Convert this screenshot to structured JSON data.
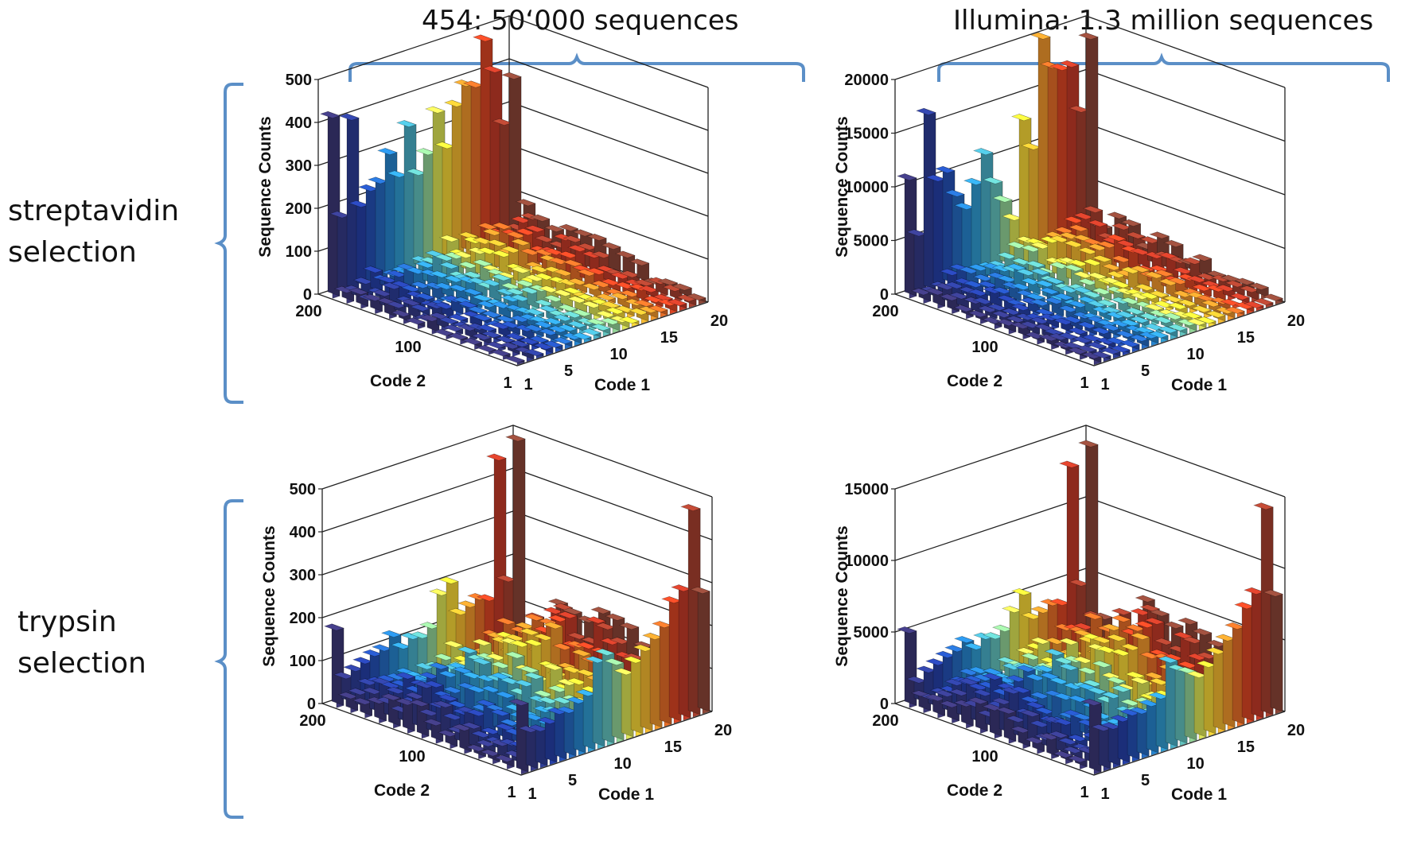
{
  "headers": {
    "left": "454: 50‘000 sequences",
    "right": "Illumina: 1.3 million sequences"
  },
  "rows": {
    "top": [
      "streptavidin",
      "selection"
    ],
    "bottom": [
      "trypsin",
      "selection"
    ]
  },
  "chart_data": [
    {
      "id": "streptavidin-454",
      "type": "bar3d",
      "ylabel": "Sequence Counts",
      "xlabel": "Code 1",
      "zlabel": "Code 2",
      "ylim": [
        0,
        500
      ],
      "yticks": [
        0,
        100,
        200,
        300,
        400,
        500
      ],
      "xticks": [
        1,
        5,
        10,
        15,
        20
      ],
      "zticks": [
        "200",
        "100",
        "1"
      ],
      "back_row_values": [
        420,
        180,
        400,
        190,
        220,
        230,
        290,
        230,
        340,
        220,
        260,
        350,
        260,
        350,
        390,
        380,
        480,
        400,
        270,
        370
      ],
      "floor_level": 25
    },
    {
      "id": "streptavidin-illumina",
      "type": "bar3d",
      "ylabel": "Sequence Counts",
      "xlabel": "Code 1",
      "zlabel": "Code 2",
      "ylim": [
        0,
        20000
      ],
      "yticks": [
        0,
        5000,
        10000,
        15000,
        20000
      ],
      "xticks": [
        1,
        5,
        10,
        15,
        20
      ],
      "zticks": [
        "200",
        "100",
        "1"
      ],
      "back_row_values": [
        11000,
        5500,
        16500,
        10000,
        10500,
        8000,
        6500,
        8500,
        11000,
        8000,
        6000,
        4000,
        13000,
        10000,
        20000,
        17000,
        16500,
        16500,
        12000,
        18500
      ],
      "floor_level": 900
    },
    {
      "id": "trypsin-454",
      "type": "bar3d",
      "ylabel": "Sequence Counts",
      "xlabel": "Code 1",
      "zlabel": "Code 2",
      "ylim": [
        0,
        500
      ],
      "yticks": [
        0,
        100,
        200,
        300,
        400,
        500
      ],
      "xticks": [
        1,
        5,
        10,
        15,
        20
      ],
      "zticks": [
        "200",
        "100",
        "1"
      ],
      "back_row_values": [
        180,
        60,
        70,
        80,
        90,
        95,
        120,
        85,
        100,
        95,
        110,
        180,
        200,
        120,
        130,
        140,
        130,
        450,
        160,
        480
      ],
      "front_row_values": [
        160,
        90,
        85,
        95,
        110,
        105,
        120,
        130,
        200,
        210,
        180,
        150,
        170,
        190,
        210,
        230,
        280,
        300,
        480,
        280
      ],
      "floor_level": 30
    },
    {
      "id": "trypsin-illumina",
      "type": "bar3d",
      "ylabel": "Sequence Counts",
      "xlabel": "Code 1",
      "zlabel": "Code 2",
      "ylim": [
        0,
        15000
      ],
      "yticks": [
        0,
        5000,
        10000,
        15000
      ],
      "xticks": [
        1,
        5,
        10,
        15,
        20
      ],
      "zticks": [
        "200",
        "100",
        "1"
      ],
      "back_row_values": [
        5200,
        1500,
        2000,
        2300,
        2600,
        2800,
        3200,
        2500,
        3000,
        2800,
        3100,
        4200,
        5200,
        3300,
        3500,
        3800,
        3600,
        13000,
        4500,
        14000
      ],
      "front_row_values": [
        4800,
        2800,
        2700,
        3000,
        3200,
        3100,
        3400,
        3700,
        6000,
        5200,
        4800,
        4300,
        4800,
        5500,
        6200,
        6800,
        8000,
        8800,
        14500,
        8200
      ],
      "floor_level": 900
    }
  ],
  "colors": {
    "bracket": "#5b8fc7"
  }
}
